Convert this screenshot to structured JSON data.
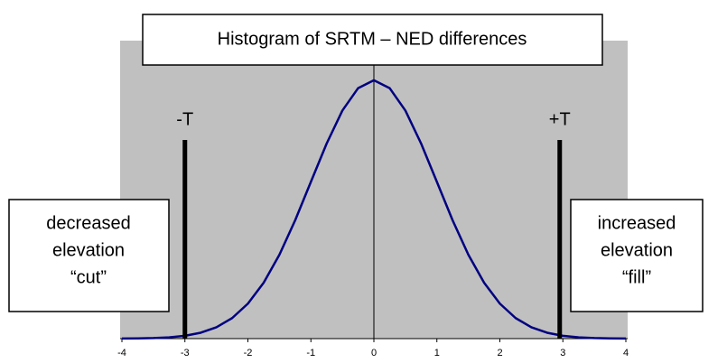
{
  "chart_data": {
    "type": "line",
    "title": "Histogram of SRTM – NED differences",
    "x": [
      -4,
      -3.75,
      -3.5,
      -3.25,
      -3,
      -2.75,
      -2.5,
      -2.25,
      -2,
      -1.75,
      -1.5,
      -1.25,
      -1,
      -0.75,
      -0.5,
      -0.25,
      0,
      0.25,
      0.5,
      0.75,
      1,
      1.25,
      1.5,
      1.75,
      2,
      2.25,
      2.5,
      2.75,
      3,
      3.25,
      3.5,
      3.75,
      4
    ],
    "series": [
      {
        "color": "#000080",
        "values": [
          0.0001,
          0.0004,
          0.0009,
          0.002,
          0.0044,
          0.0091,
          0.0175,
          0.0317,
          0.054,
          0.0863,
          0.1295,
          0.1826,
          0.242,
          0.3011,
          0.3521,
          0.3867,
          0.3989,
          0.3867,
          0.3521,
          0.3011,
          0.242,
          0.1826,
          0.1295,
          0.0863,
          0.054,
          0.0317,
          0.0175,
          0.0091,
          0.0044,
          0.002,
          0.0009,
          0.0004,
          0.0001
        ]
      }
    ],
    "xlim": [
      -4,
      4
    ],
    "xticks": [
      -4,
      -3,
      -2,
      -1,
      0,
      1,
      2,
      3,
      4
    ],
    "ylim": [
      0,
      0.46
    ],
    "background": "#c0c0c0",
    "thresholds": [
      {
        "label": "-T",
        "x": -3
      },
      {
        "label": "+T",
        "x": 2.95
      }
    ],
    "left_note": [
      "decreased",
      "elevation",
      "“cut”"
    ],
    "right_note": [
      "increased",
      "elevation",
      "“fill”"
    ]
  }
}
